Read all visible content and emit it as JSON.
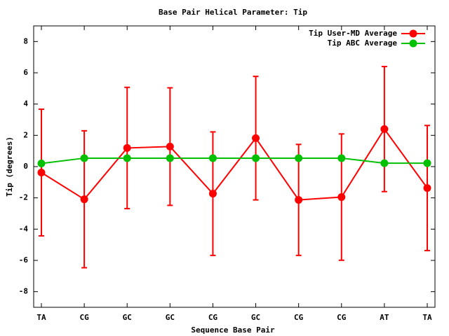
{
  "chart_data": {
    "type": "line",
    "title": "Base Pair Helical Parameter: Tip",
    "x_label": "Sequence Base Pair",
    "y_label": "Tip (degrees)",
    "categories": [
      "TA",
      "CG",
      "GC",
      "GC",
      "CG",
      "GC",
      "CG",
      "CG",
      "AT",
      "TA"
    ],
    "series": [
      {
        "name": "Tip User-MD Average",
        "color": "#ff0000",
        "values": [
          -0.38,
          -2.09,
          1.19,
          1.28,
          -1.73,
          1.82,
          -2.13,
          -1.95,
          2.4,
          -1.37
        ],
        "errors": [
          4.05,
          4.38,
          3.88,
          3.76,
          3.95,
          3.95,
          3.55,
          4.04,
          4.0,
          4.0
        ]
      },
      {
        "name": "Tip ABC Average",
        "color": "#00c000",
        "values": [
          0.2,
          0.54,
          0.54,
          0.54,
          0.54,
          0.54,
          0.54,
          0.54,
          0.22,
          0.22
        ]
      }
    ],
    "ylim": [
      -9,
      9
    ],
    "yticks": [
      -8,
      -6,
      -4,
      -2,
      0,
      2,
      4,
      6,
      8
    ],
    "legend": "top-right"
  }
}
